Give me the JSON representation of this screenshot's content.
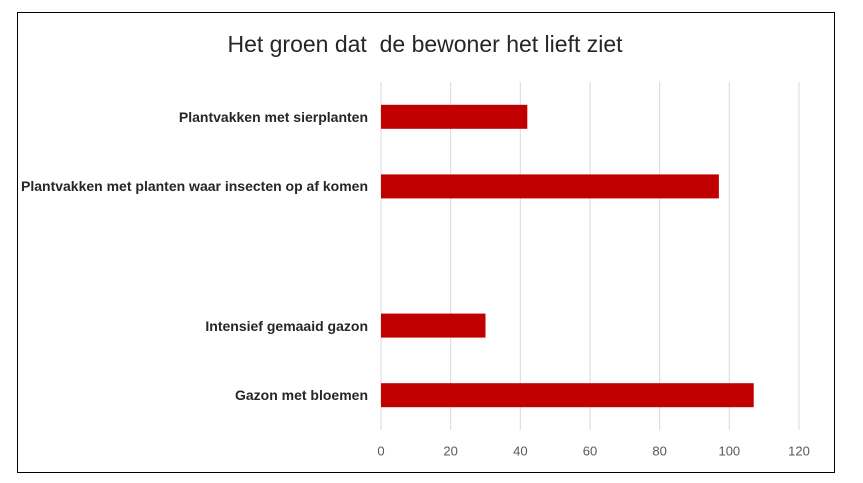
{
  "chart_data": {
    "type": "bar",
    "orientation": "horizontal",
    "title": "Het groen dat  de bewoner het lieft ziet",
    "categories": [
      "Plantvakken met sierplanten",
      "Plantvakken met planten waar insecten op af komen",
      null,
      "Intensief gemaaid gazon",
      "Gazon met bloemen"
    ],
    "values": [
      42,
      97,
      null,
      30,
      107
    ],
    "color": "#c00000",
    "xlim": [
      0,
      120
    ],
    "xticks": [
      0,
      20,
      40,
      60,
      80,
      100,
      120
    ],
    "grid": true
  }
}
